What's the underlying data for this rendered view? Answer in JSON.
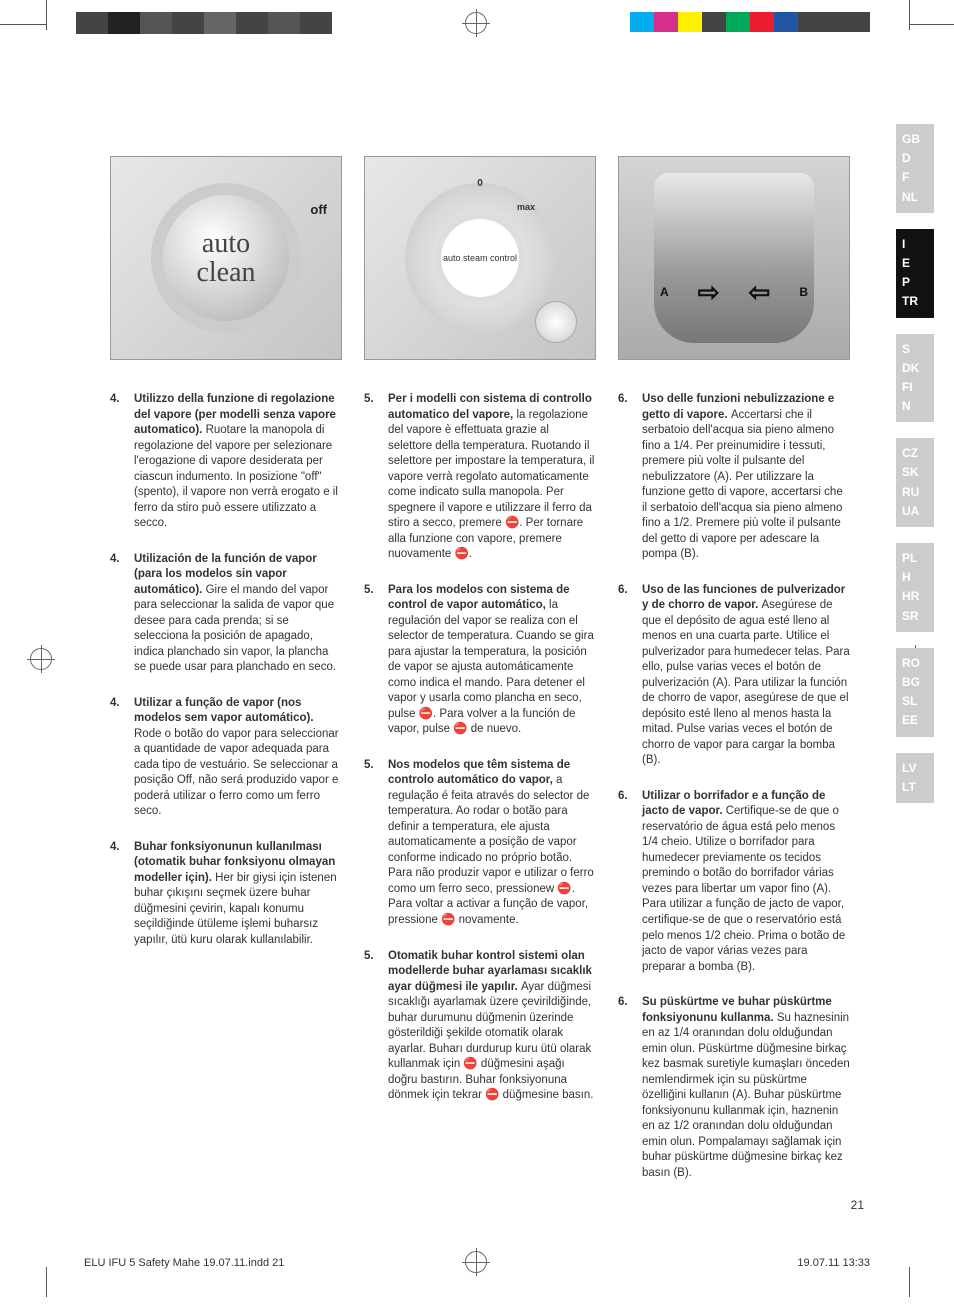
{
  "page_number": "21",
  "footer_left": "ELU IFU 5 Safety Mahe 19.07.11.indd   21",
  "footer_right": "19.07.11   13:33",
  "reg_left_colors": [
    "#444444",
    "#222222",
    "#555555",
    "#444444",
    "#666666",
    "#444444",
    "#555555",
    "#444444"
  ],
  "reg_right_colors": [
    "#00adee",
    "#d62e8b",
    "#fff100",
    "#444444",
    "#00a859",
    "#ec1b2e",
    "#2255a4",
    "#444444",
    "#444444",
    "#444444"
  ],
  "lang_groups": [
    {
      "active": false,
      "codes": [
        "GB",
        "D",
        "F",
        "NL"
      ]
    },
    {
      "active": true,
      "codes": [
        "I",
        "E",
        "P",
        "TR"
      ]
    },
    {
      "active": false,
      "codes": [
        "S",
        "DK",
        "FI",
        "N"
      ]
    },
    {
      "active": false,
      "codes": [
        "CZ",
        "SK",
        "RU",
        "UA"
      ]
    },
    {
      "active": false,
      "codes": [
        "PL",
        "H",
        "HR",
        "SR"
      ]
    },
    {
      "active": false,
      "codes": [
        "RO",
        "BG",
        "SL",
        "EE"
      ]
    },
    {
      "active": false,
      "codes": [
        "LV",
        "LT"
      ]
    }
  ],
  "fig1": {
    "dial_text": "auto\nclean",
    "off_label": "off"
  },
  "fig2": {
    "zero": "0",
    "max": "max",
    "inner": "auto steam control"
  },
  "fig3": {
    "label_a": "A",
    "label_b": "B"
  },
  "columns": [
    [
      {
        "num": "4.",
        "title": "Utilizzo della funzione di regolazione del vapore (per modelli senza vapore automatico).",
        "body": "Ruotare la manopola di regolazione del vapore per selezionare l'erogazione di vapore desiderata per ciascun indumento. In posizione \"off\" (spento), il vapore non verrà erogato e il ferro da stiro può essere utilizzato a secco."
      },
      {
        "num": "4.",
        "title": "Utilización de la función de vapor (para los modelos sin vapor automático).",
        "body": "Gire el mando del vapor para seleccionar la salida de vapor que desee para cada prenda; si se selecciona la posición de apagado, indica planchado sin vapor, la plancha se puede usar para planchado en seco."
      },
      {
        "num": "4.",
        "title": "Utilizar a função de vapor (nos modelos sem vapor automático).",
        "body": "Rode o botão do vapor para seleccionar a quantidade de vapor adequada para cada tipo de vestuário. Se seleccionar a posição Off, não será produzido vapor e poderá utilizar o ferro como um ferro seco."
      },
      {
        "num": "4.",
        "title": "Buhar fonksiyonunun kullanılması (otomatik buhar fonksiyonu olmayan modeller için).",
        "body": "Her bir giysi için istenen buhar çıkışını seçmek üzere buhar düğmesini çevirin, kapalı konumu seçildiğinde ütüleme işlemi buharsız yapılır, ütü kuru olarak kullanılabilir."
      }
    ],
    [
      {
        "num": "5.",
        "title": "Per i modelli con sistema di controllo automatico del vapore,",
        "body": "la regolazione del vapore è effettuata grazie al selettore della temperatura. Ruotando il selettore per impostare la temperatura, il vapore verrà regolato automaticamente come indicato sulla manopola. Per spegnere il vapore e utilizzare il ferro da stiro a secco, premere ⛔. Per tornare alla funzione con vapore, premere nuovamente ⛔."
      },
      {
        "num": "5.",
        "title": "Para los modelos con sistema de control de vapor automático,",
        "body": "la regulación del vapor se realiza con el selector de temperatura. Cuando se gira para ajustar la temperatura, la posición de vapor se ajusta automáticamente como indica el mando. Para detener el vapor y usarla como plancha en seco, pulse ⛔. Para volver a la función de vapor, pulse ⛔ de nuevo."
      },
      {
        "num": "5.",
        "title": "Nos modelos que têm sistema de controlo automático do vapor,",
        "body": "a regulação é feita através do selector de temperatura. Ao rodar o botão para definir a temperatura, ele ajusta automaticamente a posição de vapor conforme indicado no próprio botão. Para não produzir vapor e utilizar o ferro como um ferro seco, pressionew ⛔. Para voltar a activar a função de vapor, pressione ⛔ novamente."
      },
      {
        "num": "5.",
        "title": "Otomatik buhar kontrol sistemi olan modellerde buhar ayarlaması sıcaklık ayar düğmesi ile yapılır.",
        "body": "Ayar düğmesi sıcaklığı ayarlamak üzere çevirildiğinde, buhar durumunu düğmenin üzerinde gösterildiği şekilde otomatik olarak ayarlar. Buharı durdurup kuru ütü olarak kullanmak için ⛔ düğmesini aşağı doğru bastırın. Buhar fonksiyonuna dönmek için tekrar ⛔ düğmesine basın."
      }
    ],
    [
      {
        "num": "6.",
        "title": "Uso delle funzioni nebulizzazione e getto di vapore.",
        "body": "Accertarsi che il serbatoio dell'acqua sia pieno almeno fino a 1/4. Per preinumidire i tessuti, premere più volte il pulsante del nebulizzatore (A). Per utilizzare la funzione getto di vapore, accertarsi che il serbatoio dell'acqua sia pieno almeno fino a 1/2. Premere più volte il pulsante del getto di vapore per adescare la pompa (B)."
      },
      {
        "num": "6.",
        "title": "Uso de las funciones de pulverizador y de chorro de vapor.",
        "body": "Asegúrese de que el depósito de agua esté lleno al menos en una cuarta parte. Utilice el pulverizador para humedecer telas. Para ello, pulse varias veces el botón de pulverización (A). Para utilizar la función de chorro de vapor, asegúrese de que el depósito esté lleno al menos hasta la mitad. Pulse varias veces el botón de chorro de vapor para cargar la bomba (B)."
      },
      {
        "num": "6.",
        "title": "Utilizar o borrifador e a função de jacto de vapor.",
        "body": "Certifique-se de que o reservatório de água está pelo menos 1/4 cheio. Utilize o borrifador para humedecer previamente os tecidos premindo o botão do borrifador várias vezes para libertar um vapor fino (A). Para utilizar a função de jacto de vapor, certifique-se de que o reservatório está pelo menos 1/2 cheio. Prima o botão de jacto de vapor várias vezes para preparar a bomba (B)."
      },
      {
        "num": "6.",
        "title": "Su püskürtme ve buhar püskürtme fonksiyonunu kullanma.",
        "body": "Su haznesinin en az 1/4 oranından dolu olduğundan emin olun. Püskürtme düğmesine birkaç kez basmak suretiyle kumaşları önceden nemlendirmek için su püskürtme özelliğini kullanın (A). Buhar püskürtme fonksiyonunu kullanmak için, haznenin en az 1/2 oranından dolu olduğundan emin olun. Pompalamayı sağlamak için buhar püskürtme düğmesine birkaç kez basın (B)."
      }
    ]
  ]
}
